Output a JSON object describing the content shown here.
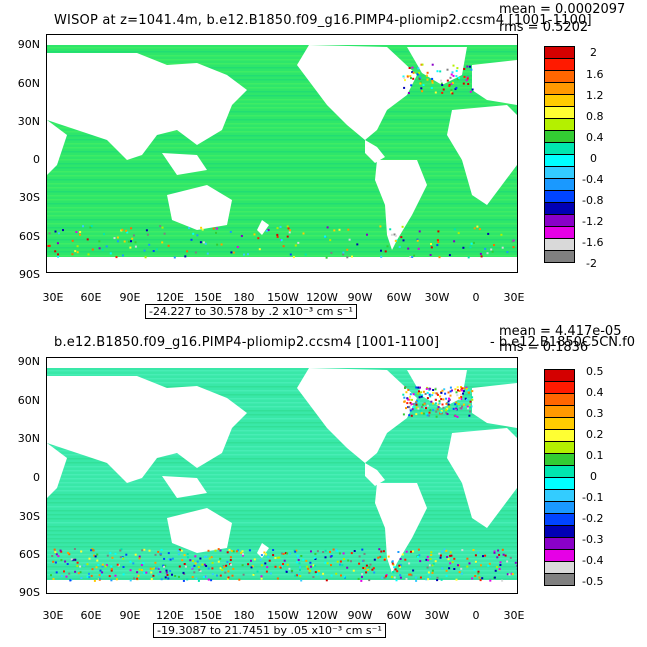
{
  "panels": [
    {
      "title": "WISOP at z=1041.4m, b.e12.B1850.f09_g16.PIMP4-pliomip2.ccsm4 [1001-1100]",
      "mean": "mean = 0.0002097",
      "rms": "rms = 0.5202",
      "range_text": "-24.227 to 30.578 by .2 x10⁻³ cm s⁻¹",
      "lat_labels": [
        "90N",
        "60N",
        "30N",
        "0",
        "30S",
        "60S",
        "90S"
      ],
      "lon_labels": [
        "30E",
        "60E",
        "90E",
        "120E",
        "150E",
        "180",
        "150W",
        "120W",
        "90W",
        "60W",
        "30W",
        "0",
        "30E"
      ],
      "colorbar_labels": [
        "2",
        "1.6",
        "1.2",
        "0.8",
        "0.4",
        "0",
        "-0.4",
        "-0.8",
        "-1.2",
        "-1.6",
        "-2"
      ],
      "colorbar_colors": [
        "#d40000",
        "#ff1a00",
        "#ff6600",
        "#ff9900",
        "#ffcc00",
        "#ffff33",
        "#b4f000",
        "#33cc33",
        "#00e6b0",
        "#00ffff",
        "#33ccff",
        "#1a99ff",
        "#0044ff",
        "#0000b4",
        "#8a00c8",
        "#e600e6",
        "#d9d9d9",
        "#808080"
      ],
      "field_color": "#2ee66a"
    },
    {
      "title": "b.e12.B1850.f09_g16.PIMP4-pliomip2.ccsm4 [1001-1100]",
      "title_overlap": "- b.e12.B1850C5CN.f0",
      "mean": "mean = 4.417e-05",
      "rms": "rms = 0.1836",
      "range_text": "-19.3087 to 21.7451 by .05 x10⁻³ cm s⁻¹",
      "lat_labels": [
        "90N",
        "60N",
        "30N",
        "0",
        "30S",
        "60S",
        "90S"
      ],
      "lon_labels": [
        "30E",
        "60E",
        "90E",
        "120E",
        "150E",
        "180",
        "150W",
        "120W",
        "90W",
        "60W",
        "30W",
        "0",
        "30E"
      ],
      "colorbar_labels": [
        "0.5",
        "0.4",
        "0.3",
        "0.2",
        "0.1",
        "0",
        "-0.1",
        "-0.2",
        "-0.3",
        "-0.4",
        "-0.5"
      ],
      "colorbar_colors": [
        "#d40000",
        "#ff1a00",
        "#ff6600",
        "#ff9900",
        "#ffcc00",
        "#ffff33",
        "#b4f000",
        "#33cc33",
        "#00e6b0",
        "#00ffff",
        "#33ccff",
        "#1a99ff",
        "#0044ff",
        "#0000b4",
        "#8a00c8",
        "#e600e6",
        "#d9d9d9",
        "#808080"
      ],
      "field_color": "#39e8a8"
    }
  ]
}
